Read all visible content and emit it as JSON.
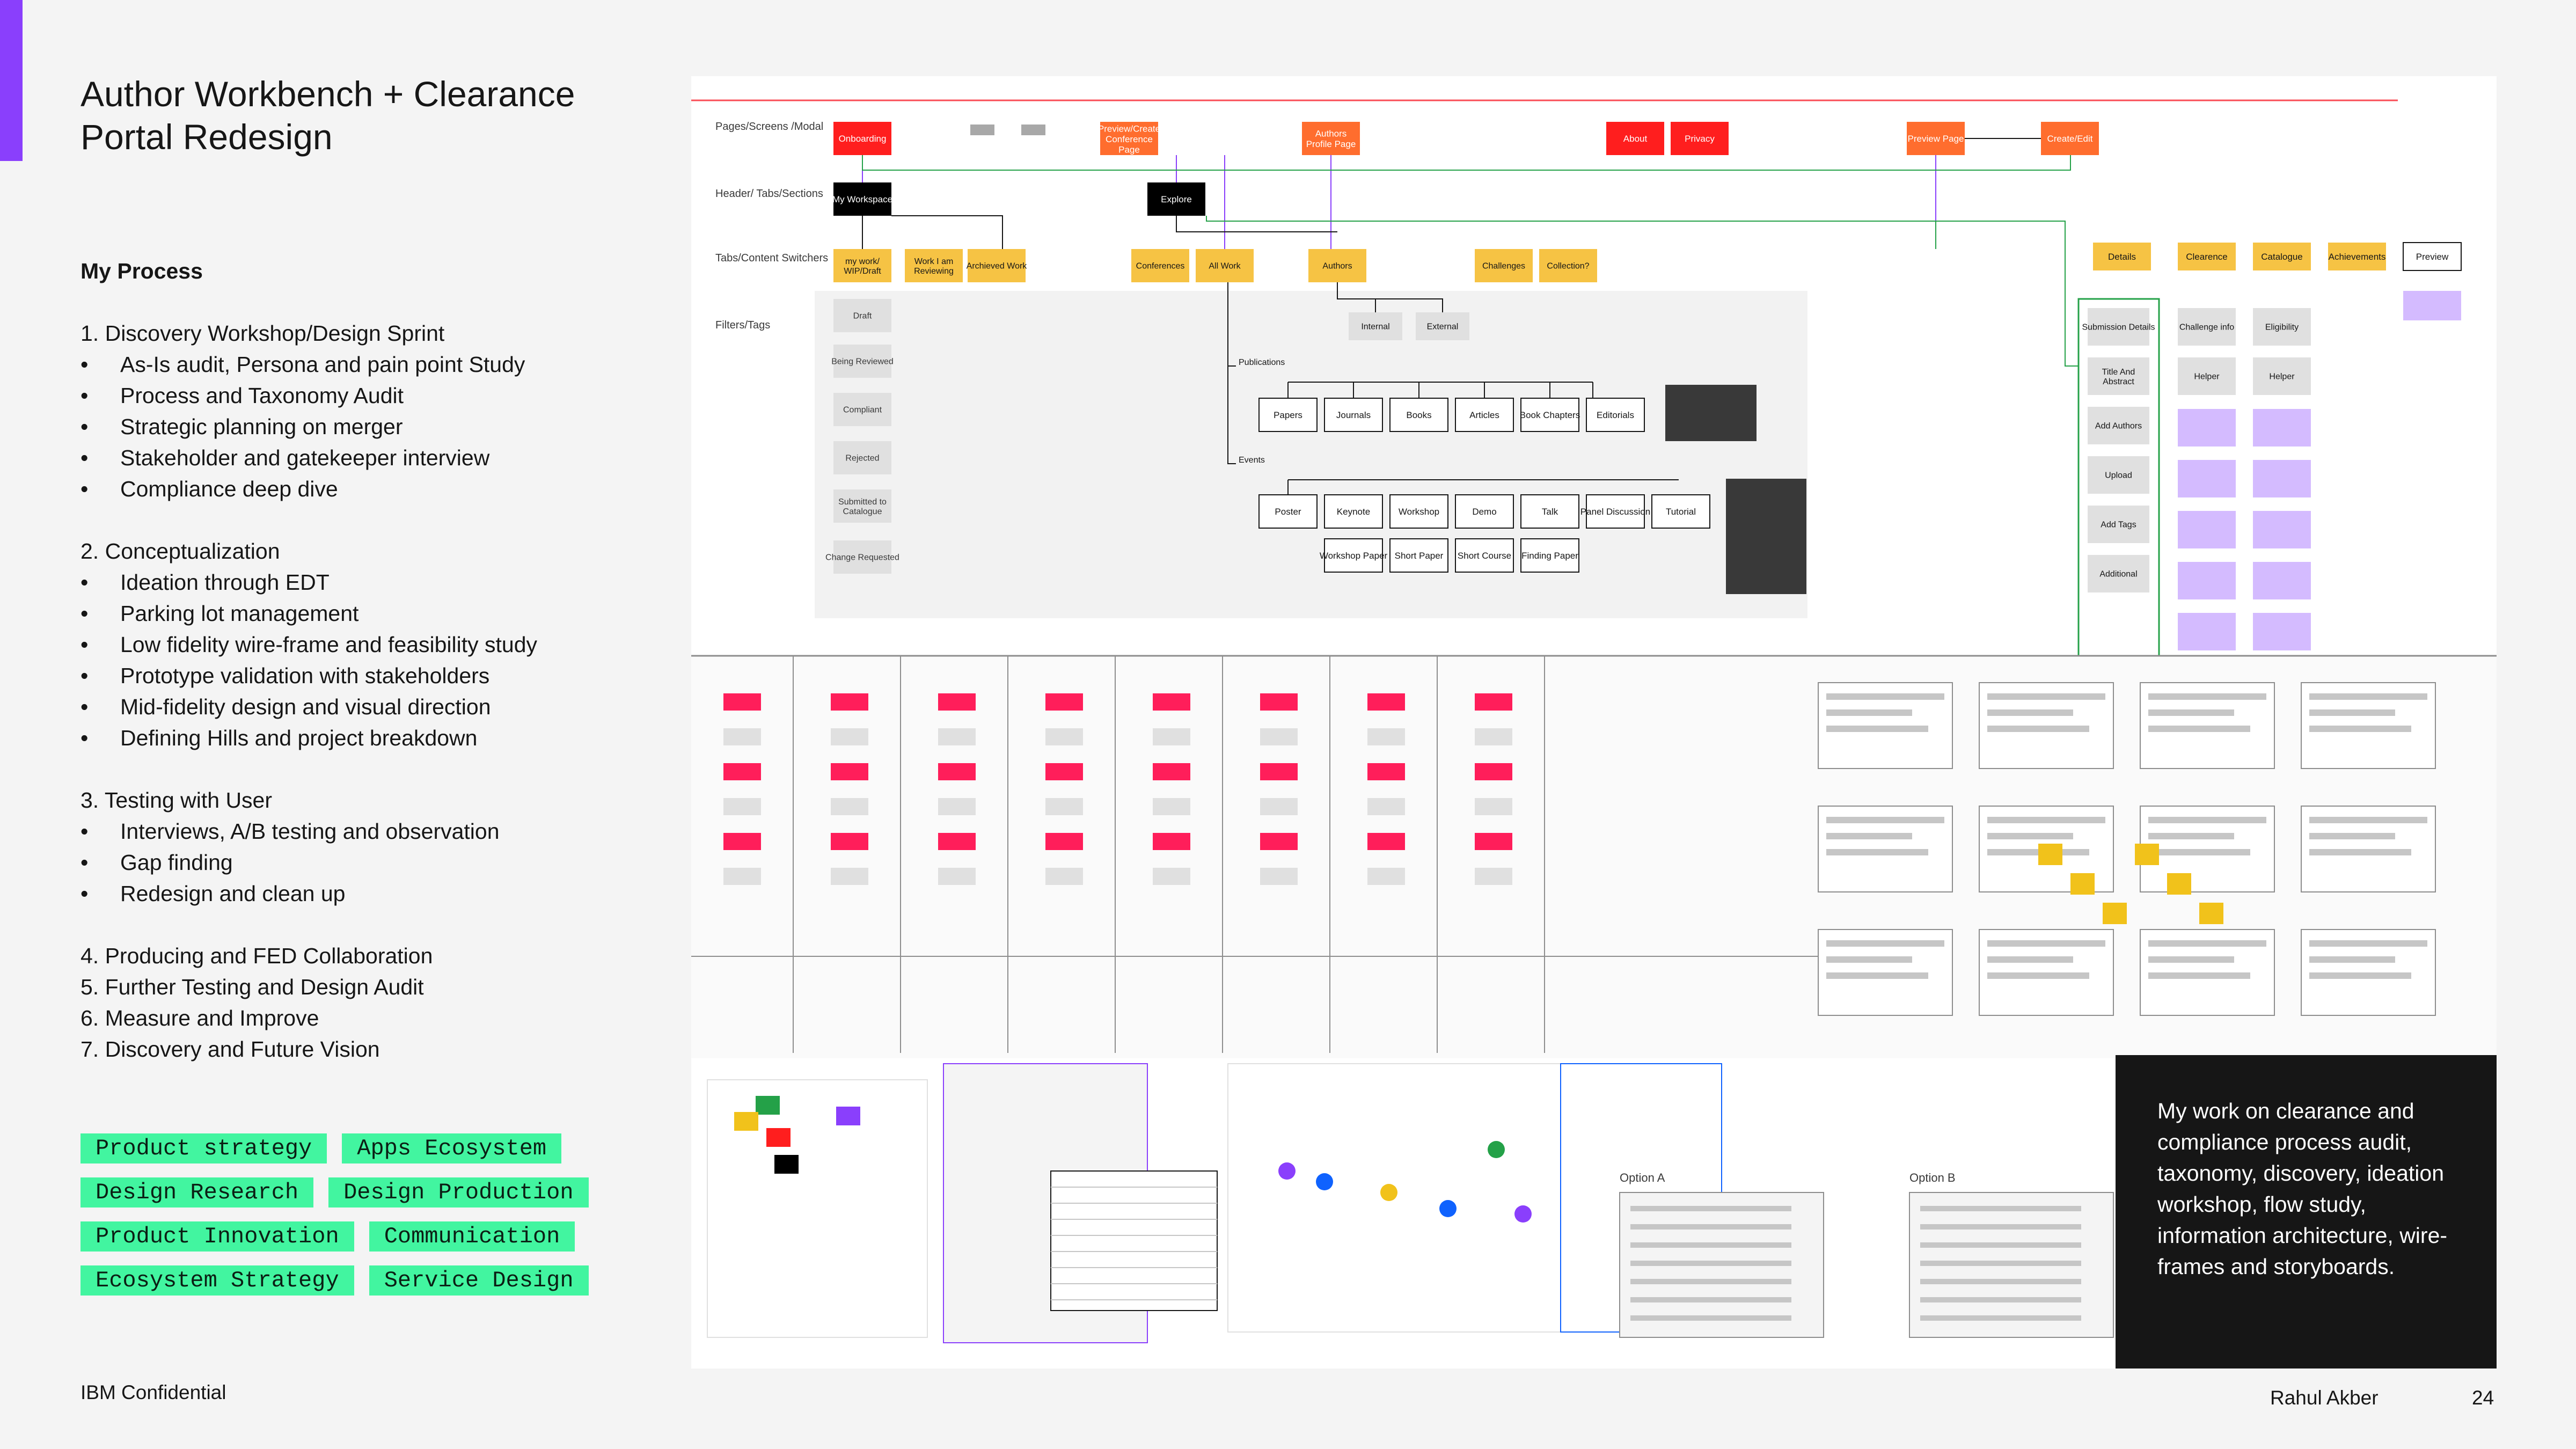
{
  "title": "Author Workbench + Clearance Portal Redesign",
  "process": {
    "heading": "My Process",
    "steps": [
      {
        "label": "1. Discovery Workshop/Design Sprint",
        "bullets": [
          "As-Is audit, Persona and pain point Study",
          "Process and Taxonomy Audit",
          "Strategic planning on merger",
          "Stakeholder and gatekeeper interview",
          "Compliance deep dive"
        ]
      },
      {
        "label": "2. Conceptualization",
        "bullets": [
          "Ideation through EDT",
          "Parking lot management",
          "Low fidelity wire-frame and feasibility study",
          "Prototype validation with stakeholders",
          "Mid-fidelity design and visual direction",
          "Defining Hills and project breakdown"
        ]
      },
      {
        "label": "3. Testing with User",
        "bullets": [
          "Interviews, A/B testing and observation",
          "Gap finding",
          "Redesign and clean up"
        ]
      },
      {
        "label": "4. Producing and FED Collaboration",
        "bullets": []
      },
      {
        "label": "5. Further Testing and Design Audit",
        "bullets": []
      },
      {
        "label": "6. Measure and Improve",
        "bullets": []
      },
      {
        "label": "7. Discovery and Future Vision",
        "bullets": []
      }
    ]
  },
  "tags": [
    [
      "Product strategy",
      "Apps Ecosystem"
    ],
    [
      "Design Research",
      "Design Production"
    ],
    [
      "Product Innovation",
      "Communication"
    ],
    [
      "Ecosystem Strategy",
      "Service Design"
    ]
  ],
  "footer": {
    "left": "IBM Confidential",
    "name": "Rahul Akber",
    "page": "24"
  },
  "callout": "My work on clearance and compliance process audit, taxonomy, discovery, ideation workshop, flow study, information architecture, wire-frames and storyboards.",
  "colors": {
    "accent": "#8a3ffc",
    "tag": "#42f5a0",
    "callout_bg": "#161616"
  },
  "diagram": {
    "row_labels": [
      "Pages/Screens /Modal",
      "Header/ Tabs/Sections",
      "Tabs/Content Switchers",
      "Filters/Tags"
    ],
    "pages": [
      "Onboarding",
      "Preview/Create Conference Page",
      "Authors Profile Page",
      "About",
      "Privacy",
      "Preview Page",
      "Create/Edit"
    ],
    "header": [
      "My Workspace",
      "Explore"
    ],
    "tabs": [
      "my work/ WIP/Draft",
      "Work I am Reviewing",
      "Archieved Work",
      "Conferences",
      "All Work",
      "Authors",
      "Challenges",
      "Collection?"
    ],
    "filters": [
      "Draft",
      "Being Reviewed",
      "Compliant",
      "Rejected",
      "Submitted to Catalogue",
      "Change Requested"
    ],
    "authors_sub": [
      "Internal",
      "External"
    ],
    "publications_label": "Publications",
    "publications": [
      "Papers",
      "Journals",
      "Books",
      "Articles",
      "Book Chapters",
      "Editorials"
    ],
    "events_label": "Events",
    "events_row1": [
      "Poster",
      "Keynote",
      "Workshop",
      "Demo",
      "Talk",
      "Panel Discussion",
      "Tutorial"
    ],
    "events_row2": [
      "Workshop Paper",
      "Short Paper",
      "Short Course",
      "Finding Paper"
    ],
    "right_tabs": [
      "Details",
      "Clearence",
      "Catalogue",
      "Achievements",
      "Preview"
    ],
    "details": [
      "Submission Details",
      "Title And Abstract",
      "Add Authors",
      "Upload",
      "Add Tags",
      "Additional"
    ],
    "clearance": [
      "Challenge info",
      "Helper"
    ],
    "catalogue": [
      "Eligibility",
      "Helper"
    ],
    "options": [
      "Option A",
      "Option B"
    ]
  }
}
